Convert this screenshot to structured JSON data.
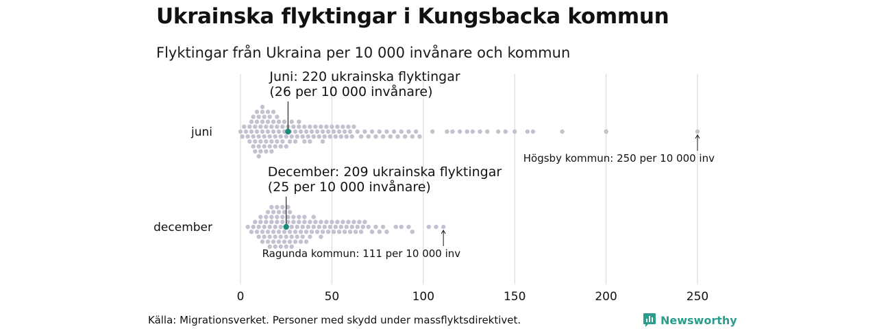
{
  "title": "Ukrainska flyktingar i Kungsbacka kommun",
  "subtitle": "Flyktingar från Ukraina per 10 000 invånare och kommun",
  "source": "Källa: Migrationsverket. Personer med skydd under massflyktsdirektivet.",
  "brand": "Newsworthy",
  "colors": {
    "dots": "#c3c1cf",
    "highlight": "#1a8a7a",
    "grid": "#d6d6d6",
    "brand": "#2a9d8f"
  },
  "chart_data": {
    "type": "scatter",
    "subtype": "beeswarm",
    "categories": [
      "juni",
      "december"
    ],
    "xlim": [
      0,
      250
    ],
    "xticks": [
      0,
      50,
      100,
      150,
      200,
      250
    ],
    "grid": true,
    "series": [
      {
        "category": "juni",
        "values": [
          0,
          1,
          2,
          3,
          4,
          5,
          5,
          6,
          6,
          7,
          7,
          7,
          8,
          8,
          8,
          9,
          9,
          9,
          10,
          10,
          10,
          10,
          11,
          11,
          11,
          12,
          12,
          12,
          12,
          13,
          13,
          13,
          14,
          14,
          14,
          15,
          15,
          15,
          16,
          16,
          16,
          17,
          17,
          17,
          18,
          18,
          18,
          19,
          19,
          20,
          20,
          20,
          21,
          21,
          22,
          22,
          23,
          23,
          24,
          24,
          25,
          25,
          26,
          27,
          27,
          28,
          28,
          29,
          30,
          30,
          31,
          32,
          32,
          33,
          34,
          35,
          35,
          36,
          37,
          38,
          38,
          39,
          40,
          41,
          42,
          43,
          44,
          45,
          45,
          46,
          47,
          48,
          49,
          50,
          51,
          52,
          53,
          54,
          55,
          56,
          57,
          58,
          59,
          60,
          61,
          62,
          64,
          66,
          68,
          70,
          72,
          74,
          76,
          78,
          80,
          82,
          84,
          86,
          88,
          90,
          92,
          94,
          96,
          98,
          105,
          113,
          116,
          120,
          124,
          127,
          131,
          135,
          141,
          145,
          150,
          157,
          160,
          176,
          200,
          250
        ],
        "highlight": {
          "value": 26,
          "label_line1": "Juni: 220 ukrainska flyktingar",
          "label_line2": "(26 per 10 000 invånare)"
        },
        "extreme": {
          "value": 250,
          "label": "Högsby kommun: 250 per 10 000 inv"
        }
      },
      {
        "category": "december",
        "values": [
          4,
          6,
          7,
          8,
          9,
          10,
          10,
          11,
          11,
          12,
          12,
          13,
          13,
          14,
          14,
          15,
          15,
          15,
          16,
          16,
          16,
          17,
          17,
          17,
          18,
          18,
          18,
          19,
          19,
          19,
          20,
          20,
          20,
          21,
          21,
          21,
          22,
          22,
          22,
          23,
          23,
          23,
          24,
          24,
          24,
          25,
          25,
          25,
          26,
          26,
          26,
          27,
          27,
          27,
          28,
          28,
          28,
          29,
          29,
          30,
          30,
          31,
          31,
          32,
          32,
          33,
          33,
          34,
          34,
          35,
          35,
          36,
          36,
          37,
          38,
          38,
          39,
          40,
          40,
          41,
          42,
          43,
          44,
          44,
          45,
          46,
          47,
          48,
          49,
          50,
          51,
          52,
          53,
          54,
          55,
          56,
          57,
          58,
          59,
          60,
          61,
          62,
          63,
          64,
          65,
          66,
          67,
          68,
          70,
          72,
          74,
          76,
          78,
          80,
          85,
          88,
          92,
          94,
          103,
          107,
          111
        ],
        "highlight": {
          "value": 25,
          "label_line1": "December: 209 ukrainska flyktingar",
          "label_line2": "(25 per 10 000 invånare)"
        },
        "extreme": {
          "value": 111,
          "label": "Ragunda kommun: 111 per 10 000 inv"
        }
      }
    ]
  }
}
